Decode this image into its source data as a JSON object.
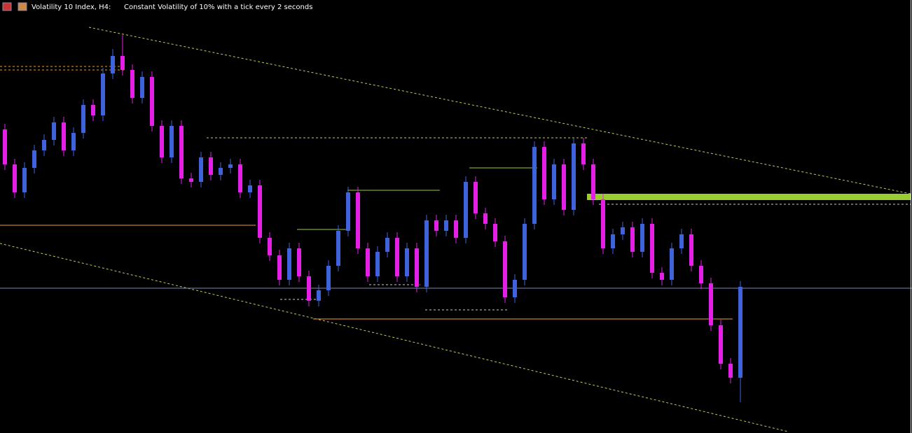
{
  "chart_data": {
    "type": "candlestick",
    "title": "Volatility 10 Index, H4:",
    "subtitle": "Constant Volatility of 10% with a tick every 2 seconds",
    "up_color": "#3f63dc",
    "down_color": "#e51ee8",
    "ylim": [
      0,
      619
    ],
    "open": [
      434,
      384,
      344,
      379,
      404,
      419,
      444,
      404,
      429,
      469,
      454,
      514,
      539,
      519,
      479,
      509,
      439,
      394,
      439,
      364,
      359,
      394,
      369,
      379,
      384,
      344,
      354,
      279,
      254,
      219,
      264,
      224,
      189,
      204,
      239,
      289,
      344,
      264,
      224,
      259,
      279,
      224,
      264,
      209,
      304,
      289,
      304,
      279,
      359,
      314,
      299,
      274,
      194,
      219,
      299,
      409,
      334,
      384,
      319,
      414,
      384,
      334,
      264,
      284,
      294,
      259,
      299,
      229,
      219,
      264,
      284,
      239,
      214,
      154,
      99,
      79
    ],
    "high": [
      442,
      392,
      387,
      412,
      427,
      452,
      452,
      437,
      477,
      477,
      522,
      549,
      569,
      527,
      517,
      517,
      447,
      447,
      447,
      372,
      402,
      402,
      387,
      392,
      392,
      362,
      362,
      287,
      262,
      272,
      272,
      232,
      212,
      247,
      297,
      352,
      352,
      272,
      267,
      287,
      287,
      272,
      272,
      312,
      312,
      312,
      312,
      367,
      367,
      322,
      307,
      282,
      227,
      307,
      417,
      417,
      392,
      392,
      422,
      422,
      392,
      342,
      292,
      302,
      302,
      307,
      307,
      237,
      272,
      292,
      292,
      247,
      222,
      162,
      107,
      217
    ],
    "low": [
      376,
      336,
      336,
      371,
      396,
      411,
      396,
      396,
      421,
      446,
      446,
      506,
      511,
      471,
      471,
      431,
      386,
      386,
      356,
      351,
      351,
      361,
      361,
      371,
      336,
      336,
      271,
      246,
      211,
      211,
      216,
      181,
      181,
      196,
      231,
      281,
      256,
      216,
      216,
      251,
      216,
      216,
      201,
      201,
      281,
      281,
      271,
      271,
      306,
      291,
      266,
      186,
      186,
      211,
      291,
      326,
      326,
      311,
      311,
      376,
      326,
      256,
      256,
      276,
      251,
      251,
      221,
      211,
      211,
      256,
      231,
      206,
      146,
      91,
      71,
      44
    ],
    "close": [
      384,
      344,
      379,
      404,
      419,
      444,
      404,
      429,
      469,
      454,
      514,
      539,
      519,
      479,
      509,
      439,
      394,
      439,
      364,
      359,
      394,
      369,
      379,
      384,
      344,
      354,
      279,
      254,
      219,
      264,
      224,
      189,
      204,
      239,
      289,
      344,
      264,
      224,
      259,
      279,
      224,
      264,
      209,
      304,
      289,
      304,
      279,
      359,
      314,
      299,
      274,
      194,
      219,
      299,
      409,
      334,
      384,
      319,
      414,
      384,
      334,
      264,
      284,
      294,
      259,
      299,
      229,
      219,
      264,
      284,
      239,
      214,
      154,
      99,
      79,
      209
    ]
  }
}
